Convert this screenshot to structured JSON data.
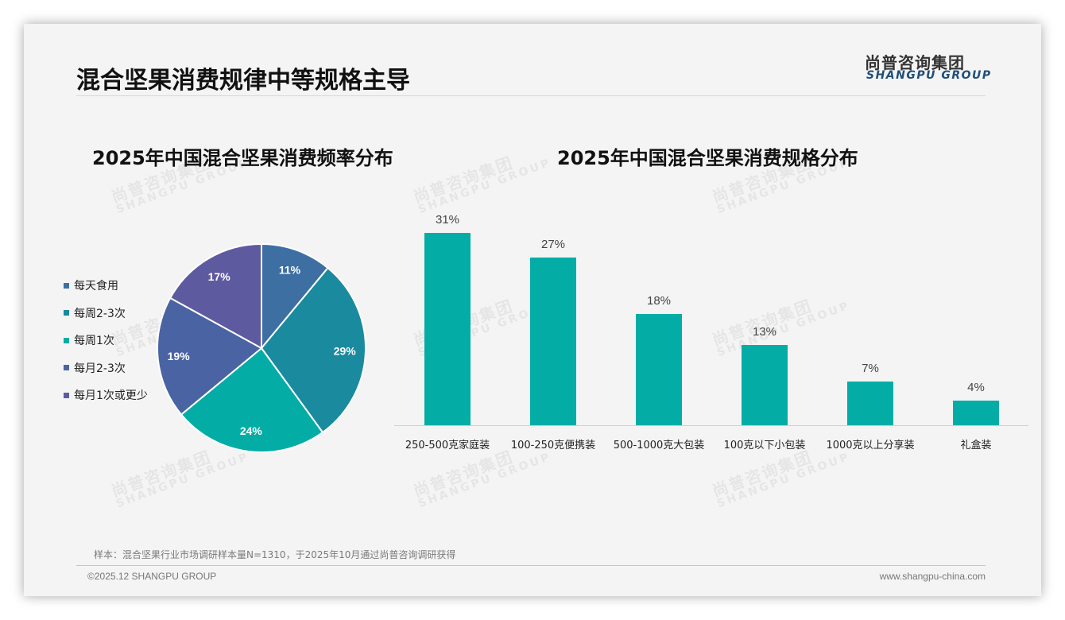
{
  "header": {
    "title": "混合坚果消费规律中等规格主导",
    "logo_cn": "尚普咨询集团",
    "logo_en": "SHANGPU GROUP"
  },
  "watermark": {
    "cn": "尚普咨询集团",
    "en": "SHANGPU GROUP"
  },
  "pie_chart": {
    "title": "2025年中国混合坚果消费频率分布"
  },
  "bar_chart": {
    "title": "2025年中国混合坚果消费规格分布"
  },
  "chart_data": [
    {
      "type": "pie",
      "title": "2025年中国混合坚果消费频率分布",
      "categories": [
        "每天食用",
        "每周2-3次",
        "每周1次",
        "每月2-3次",
        "每月1次或更少"
      ],
      "values": [
        11,
        29,
        24,
        19,
        17
      ],
      "labels": [
        "11%",
        "29%",
        "24%",
        "19%",
        "17%"
      ],
      "colors": [
        "#3e6fa3",
        "#1a8a9e",
        "#03ada6",
        "#4a63a3",
        "#5e5aa0"
      ],
      "legend_position": "left"
    },
    {
      "type": "bar",
      "title": "2025年中国混合坚果消费规格分布",
      "categories": [
        "250-500克家庭装",
        "100-250克便携装",
        "500-1000克大包装",
        "100克以下小包装",
        "1000克以上分享装",
        "礼盒装"
      ],
      "values": [
        31,
        27,
        18,
        13,
        7,
        4
      ],
      "labels": [
        "31%",
        "27%",
        "18%",
        "13%",
        "7%",
        "4%"
      ],
      "xlabel": "",
      "ylabel": "",
      "grid": false,
      "color": "#03ada6"
    }
  ],
  "footer": {
    "note": "样本：混合坚果行业市场调研样本量N=1310，于2025年10月通过尚普咨询调研获得",
    "copyright": "©2025.12 SHANGPU GROUP",
    "website": "www.shangpu-china.com"
  }
}
